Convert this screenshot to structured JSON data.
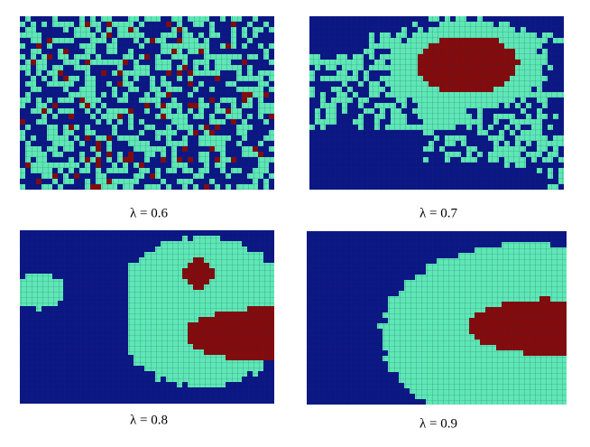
{
  "panels": [
    {
      "caption": "λ = 0.6"
    },
    {
      "caption": "λ = 0.7"
    },
    {
      "caption": "λ = 0.8"
    },
    {
      "caption": "λ = 0.9"
    }
  ]
}
